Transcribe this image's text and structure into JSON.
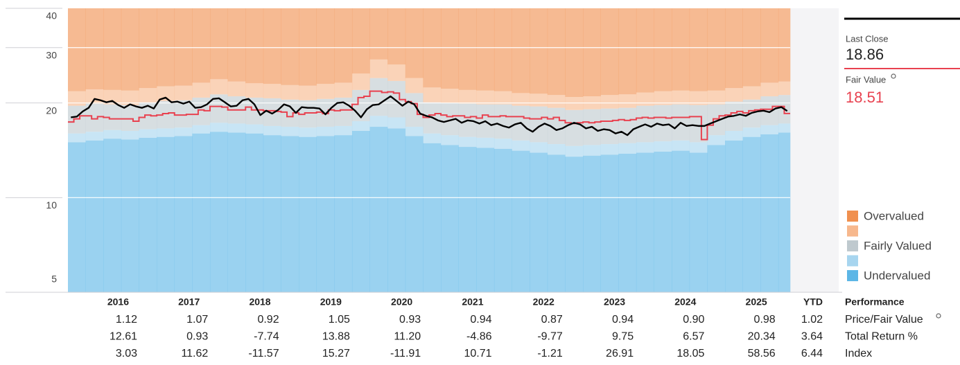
{
  "chart_data": {
    "type": "line",
    "log_scale": true,
    "ylim": [
      5,
      40
    ],
    "yticks": [
      5,
      10,
      20,
      30,
      40
    ],
    "grid": true,
    "series": [
      {
        "name": "Last Close",
        "color": "#000000",
        "style": "line",
        "values": [
          18.0,
          18.1,
          18.8,
          19.3,
          20.6,
          20.4,
          20.1,
          20.3,
          19.7,
          19.3,
          19.8,
          19.5,
          19.3,
          19.6,
          19.2,
          20.5,
          20.8,
          20.1,
          20.2,
          19.9,
          20.2,
          19.3,
          19.4,
          19.8,
          20.6,
          20.7,
          20.1,
          19.5,
          19.6,
          20.4,
          20.6,
          19.8,
          18.3,
          18.9,
          18.5,
          19.0,
          19.8,
          19.5,
          18.6,
          19.4,
          19.3,
          19.3,
          19.2,
          18.4,
          19.3,
          20.0,
          20.1,
          19.6,
          18.9,
          18.0,
          19.1,
          19.7,
          19.8,
          20.4,
          21.0,
          20.3,
          19.6,
          20.2,
          19.8,
          18.5,
          18.2,
          18.0,
          17.6,
          17.4,
          17.6,
          17.8,
          17.3,
          17.6,
          17.5,
          17.2,
          17.5,
          17.0,
          17.2,
          16.9,
          16.7,
          17.1,
          17.3,
          16.6,
          16.2,
          16.8,
          17.2,
          16.9,
          16.4,
          16.6,
          17.0,
          17.3,
          17.1,
          16.6,
          16.8,
          16.3,
          16.5,
          16.4,
          16.0,
          16.2,
          15.8,
          16.5,
          16.8,
          17.1,
          16.8,
          17.2,
          17.0,
          17.1,
          16.6,
          17.3,
          16.9,
          17.0,
          16.9,
          16.9,
          17.2,
          17.5,
          17.8,
          18.1,
          18.2,
          18.4,
          18.2,
          18.6,
          18.8,
          18.9,
          18.7,
          19.2,
          19.4,
          18.86
        ]
      },
      {
        "name": "Fair Value",
        "color": "#e8414f",
        "style": "step",
        "values": [
          17.4,
          17.8,
          18.2,
          18.2,
          17.8,
          18.1,
          18.0,
          17.8,
          17.8,
          17.8,
          17.8,
          17.5,
          18.0,
          18.3,
          18.2,
          18.3,
          18.5,
          18.6,
          18.3,
          18.3,
          18.4,
          18.4,
          19.0,
          18.9,
          19.5,
          19.5,
          19.4,
          19.0,
          19.0,
          19.0,
          19.4,
          19.0,
          19.0,
          18.9,
          18.9,
          18.8,
          18.7,
          18.1,
          18.6,
          18.4,
          18.6,
          18.6,
          18.7,
          18.5,
          19.0,
          18.9,
          19.0,
          19.0,
          19.8,
          20.8,
          21.0,
          21.8,
          21.8,
          21.6,
          21.7,
          21.5,
          20.5,
          20.2,
          19.9,
          18.4,
          18.0,
          18.3,
          18.5,
          18.3,
          18.1,
          18.2,
          18.2,
          18.0,
          18.1,
          17.9,
          18.3,
          18.1,
          18.1,
          18.2,
          18.1,
          18.1,
          18.1,
          17.9,
          17.8,
          17.8,
          18.0,
          17.8,
          18.0,
          17.6,
          17.3,
          17.2,
          17.3,
          17.4,
          17.3,
          17.4,
          17.5,
          17.5,
          17.6,
          17.7,
          17.6,
          17.7,
          17.9,
          18.0,
          17.9,
          18.0,
          18.0,
          17.9,
          18.0,
          18.0,
          18.0,
          18.1,
          18.1,
          15.3,
          17.0,
          17.8,
          18.2,
          18.3,
          18.6,
          18.8,
          18.6,
          18.9,
          19.0,
          19.1,
          19.1,
          19.5,
          19.5,
          18.51
        ]
      }
    ],
    "bands": [
      {
        "name": "Undervalued",
        "color": "#5cb6e6",
        "values": [
          15.0,
          15.2,
          15.4,
          15.3,
          15.5,
          15.6,
          15.7,
          16.0,
          16.2,
          16.1,
          16.0,
          15.8,
          15.7,
          15.6,
          15.7,
          15.8,
          16.3,
          16.8,
          16.6,
          15.7,
          14.9,
          14.7,
          14.5,
          14.4,
          14.3,
          14.1,
          13.9,
          13.7,
          13.5,
          13.6,
          13.7,
          13.8,
          13.9,
          14.0,
          14.1,
          13.9,
          14.7,
          15.2,
          15.6,
          15.9,
          16.1
        ]
      },
      {
        "name": null,
        "color": "#a7d5ef",
        "values": [
          16.0,
          16.2,
          16.4,
          16.3,
          16.5,
          16.6,
          16.7,
          17.0,
          17.3,
          17.2,
          17.1,
          16.9,
          16.8,
          16.7,
          16.8,
          16.9,
          17.5,
          18.2,
          18.0,
          16.8,
          16.0,
          15.8,
          15.6,
          15.5,
          15.4,
          15.2,
          15.0,
          14.8,
          14.6,
          14.7,
          14.8,
          14.9,
          15.0,
          15.1,
          15.2,
          15.0,
          15.8,
          16.3,
          16.7,
          17.0,
          17.2
        ]
      },
      {
        "name": "Fairly Valued",
        "color": "#bfc9ce",
        "values": [
          19.6,
          19.9,
          19.8,
          19.7,
          20.1,
          20.3,
          20.4,
          20.8,
          21.3,
          21.0,
          20.8,
          20.7,
          20.5,
          20.4,
          20.6,
          20.8,
          22.0,
          24.0,
          23.5,
          21.5,
          20.1,
          20.0,
          19.9,
          19.8,
          19.8,
          19.6,
          19.5,
          19.3,
          19.0,
          19.1,
          19.2,
          19.3,
          19.6,
          19.7,
          19.8,
          19.7,
          19.8,
          20.2,
          20.5,
          21.0,
          21.2
        ]
      },
      {
        "name": null,
        "color": "#f7b88d",
        "values": [
          21.8,
          22.1,
          22.0,
          21.9,
          22.3,
          22.6,
          22.7,
          23.2,
          23.8,
          23.4,
          23.1,
          23.0,
          22.8,
          22.7,
          23.0,
          23.2,
          24.8,
          27.5,
          26.5,
          24.0,
          22.4,
          22.2,
          22.0,
          21.9,
          21.8,
          21.5,
          21.4,
          21.2,
          20.9,
          21.0,
          21.2,
          21.3,
          21.6,
          21.8,
          21.9,
          21.8,
          21.9,
          22.3,
          22.6,
          23.2,
          23.4
        ]
      },
      {
        "name": "Overvalued",
        "color": "#f0904f"
      }
    ],
    "table": {
      "header": "Performance",
      "columns": [
        "2016",
        "2017",
        "2018",
        "2019",
        "2020",
        "2021",
        "2022",
        "2023",
        "2024",
        "2025",
        "YTD"
      ],
      "rows": [
        {
          "label": "Price/Fair Value",
          "values": [
            "1.12",
            "1.07",
            "0.92",
            "1.05",
            "0.93",
            "0.94",
            "0.87",
            "0.94",
            "0.90",
            "0.98",
            "1.02"
          ]
        },
        {
          "label": "Total Return %",
          "values": [
            "12.61",
            "0.93",
            "-7.74",
            "13.88",
            "11.20",
            "-4.86",
            "-9.77",
            "9.75",
            "6.57",
            "20.34",
            "3.64"
          ]
        },
        {
          "label": "Index",
          "values": [
            "3.03",
            "11.62",
            "-11.57",
            "15.27",
            "-11.91",
            "10.71",
            "-1.21",
            "26.91",
            "18.05",
            "58.56",
            "6.44"
          ]
        }
      ]
    }
  }
}
